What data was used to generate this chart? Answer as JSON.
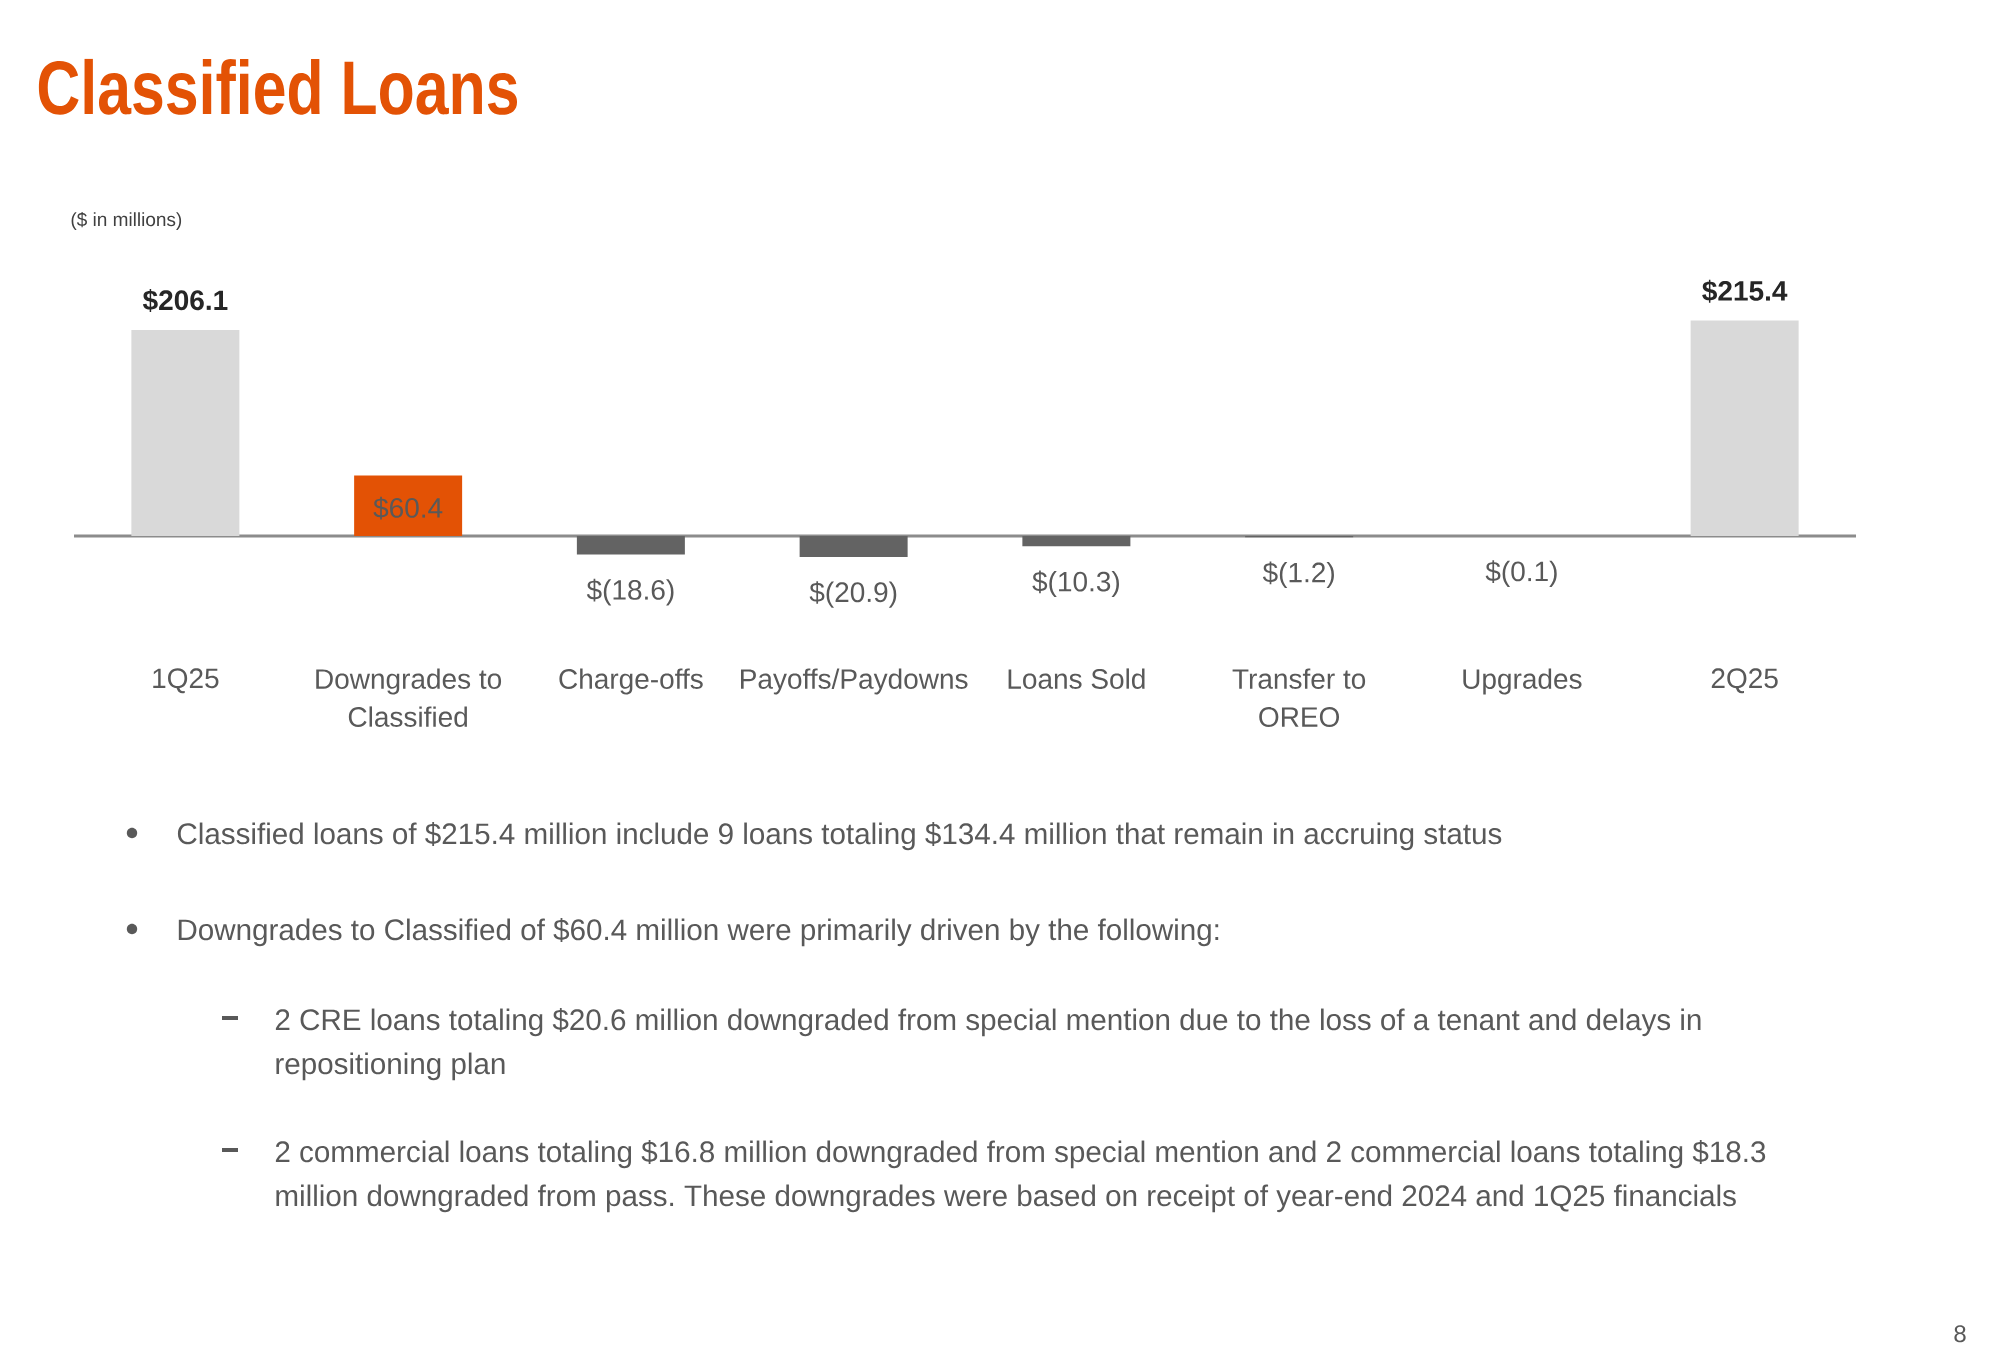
{
  "chart_data": {
    "type": "bar",
    "title": "Classified Loans",
    "subtitle": "($ in millions)",
    "categories": [
      "1Q25",
      "Downgrades to Classified",
      "Charge-offs",
      "Payoffs/Paydowns",
      "Loans Sold",
      "Transfer to OREO",
      "Upgrades",
      "2Q25"
    ],
    "values": [
      206.1,
      60.4,
      -18.6,
      -20.9,
      -10.3,
      -1.2,
      -0.1,
      215.4
    ],
    "colors": [
      "#d9d9d9",
      "#e35205",
      "#636363",
      "#636363",
      "#636363",
      "#636363",
      "#636363",
      "#d9d9d9"
    ],
    "value_labels": [
      "$206.1",
      "$60.4",
      "$(18.6)",
      "$(20.9)",
      "$(10.3)",
      "$(1.2)",
      "$(0.1)",
      "$215.4"
    ],
    "annotations": [
      "Classified loans of $215.4 million include 9 loans totaling $134.4 million that remain in accruing status",
      "Downgrades to Classified of $60.4 million were primarily driven by the following:",
      "2 CRE loans totaling $20.6 million downgraded from special mention due to the loss of a tenant and delays in repositioning plan",
      "2 commercial loans totaling $16.8 million downgraded from special mention and 2 commercial loans totaling $18.3 million downgraded from pass. These downgrades were based on receipt of year-end 2024 and 1Q25 financials",
      "8"
    ]
  }
}
